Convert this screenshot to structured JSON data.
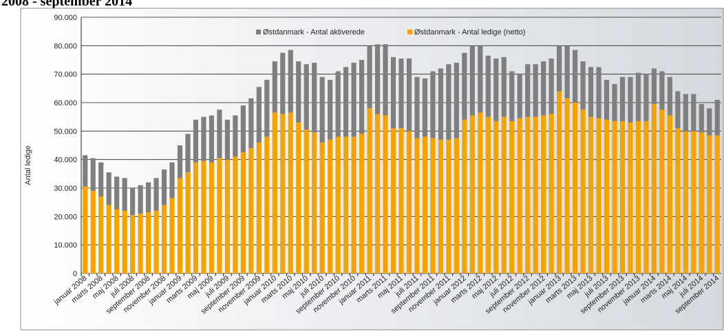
{
  "chart_data": {
    "type": "stacked_bar",
    "title": "2008 - september 2014",
    "y_label": "Antal ledige",
    "categories": [
      "januar 2008",
      null,
      "marts 2008",
      null,
      "maj 2008",
      null,
      "juli 2008",
      null,
      "september 2008",
      null,
      "november 2008",
      null,
      "januar 2009",
      null,
      "marts 2009",
      null,
      "maj 2009",
      null,
      "juli 2009",
      null,
      "september 2009",
      null,
      "november 2009",
      null,
      "januar 2010",
      null,
      "marts 2010",
      null,
      "maj 2010",
      null,
      "juli 2010",
      null,
      "september 2010",
      null,
      "november 2010",
      null,
      "januar 2011",
      null,
      "marts 2011",
      null,
      "maj 2011",
      null,
      "juli 2011",
      null,
      "september 2011",
      null,
      "november 2011",
      null,
      "januar 2012",
      null,
      "marts 2012",
      null,
      "maj 2012",
      null,
      "juli 2012",
      null,
      "september 2012",
      null,
      "november 2012",
      null,
      "januar 2013",
      null,
      "marts 2013",
      null,
      "maj 2013",
      null,
      "juli 2013",
      null,
      "september 2013",
      null,
      "november 2013",
      null,
      "januar 2014",
      null,
      "marts 2014",
      null,
      "maj 2014",
      null,
      "juli 2014",
      null,
      "september 2014"
    ],
    "series": [
      {
        "name": "Østdanmark - Antal ledige (netto)",
        "color": "#f5a300",
        "values": [
          30500,
          29000,
          27000,
          24000,
          22500,
          22000,
          20500,
          21000,
          21500,
          22000,
          24000,
          26500,
          33500,
          35500,
          39000,
          39500,
          39000,
          40500,
          40000,
          41000,
          42500,
          44000,
          46000,
          48000,
          56500,
          56000,
          56500,
          53000,
          50500,
          49500,
          46000,
          47000,
          48000,
          48000,
          48000,
          49000,
          58000,
          56000,
          55500,
          51000,
          51000,
          50000,
          47500,
          48000,
          47500,
          47000,
          47000,
          47500,
          54000,
          55500,
          56500,
          55000,
          53500,
          55000,
          53500,
          54500,
          55000,
          55000,
          55500,
          56000,
          64000,
          61500,
          60000,
          57500,
          55000,
          54500,
          54000,
          53500,
          53500,
          53000,
          53500,
          53500,
          59500,
          57500,
          55500,
          51000,
          50000,
          50000,
          49500,
          48500,
          48500
        ]
      },
      {
        "name": "Østdanmark - Antal aktiverede",
        "color": "#7f7f7f",
        "values": [
          11000,
          11500,
          12000,
          11500,
          11500,
          11500,
          9500,
          10000,
          10500,
          11500,
          12500,
          12500,
          11500,
          13500,
          15000,
          15500,
          16500,
          17000,
          14000,
          14500,
          16500,
          17500,
          19500,
          20000,
          18000,
          21500,
          22000,
          21500,
          23000,
          24500,
          23000,
          21000,
          23000,
          24500,
          26000,
          26000,
          22000,
          24500,
          25000,
          25000,
          24500,
          25500,
          21500,
          20500,
          23500,
          25000,
          26500,
          26500,
          23500,
          24500,
          23500,
          21500,
          22000,
          21000,
          17500,
          15500,
          18500,
          18500,
          19000,
          19500,
          16000,
          18500,
          18500,
          17000,
          17500,
          18000,
          14000,
          13000,
          15500,
          16000,
          17000,
          16500,
          12500,
          13500,
          13500,
          13000,
          13000,
          13000,
          10000,
          9500,
          12500
        ]
      }
    ],
    "legend_order": [
      1,
      0
    ],
    "ylim": [
      0,
      90000
    ],
    "yticks": [
      {
        "value": 0,
        "label": "0"
      },
      {
        "value": 10000,
        "label": "10.000"
      },
      {
        "value": 20000,
        "label": "20.000"
      },
      {
        "value": 30000,
        "label": "30.000"
      },
      {
        "value": 40000,
        "label": "40.000"
      },
      {
        "value": 50000,
        "label": "50.000"
      },
      {
        "value": 60000,
        "label": "60.000"
      },
      {
        "value": 70000,
        "label": "70.000"
      },
      {
        "value": 80000,
        "label": "80.000"
      },
      {
        "value": 90000,
        "label": "90.000"
      }
    ],
    "grid": true,
    "legend": "top"
  }
}
